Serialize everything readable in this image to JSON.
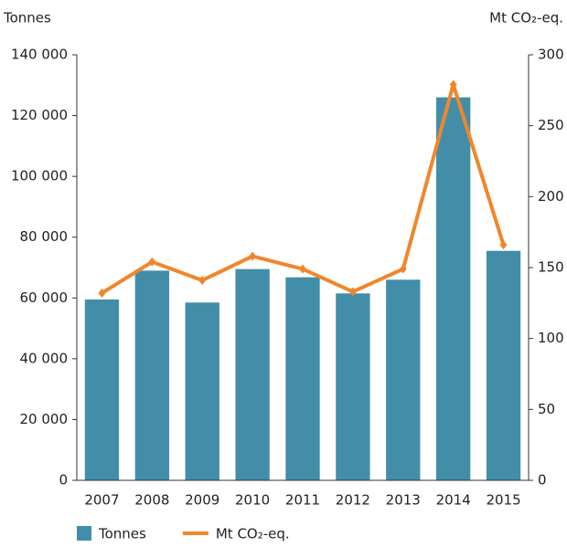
{
  "chart_data": {
    "type": "bar",
    "y_label": "Tonnes",
    "y2_label": "Mt CO₂-eq.",
    "categories": [
      "2007",
      "2008",
      "2009",
      "2010",
      "2011",
      "2012",
      "2013",
      "2014",
      "2015"
    ],
    "series": [
      {
        "name": "Tonnes",
        "type": "bar",
        "color": "#428ea8",
        "values": [
          59500,
          69000,
          58500,
          69500,
          66800,
          61500,
          66000,
          126000,
          75500
        ]
      },
      {
        "name": "Mt CO₂-eq.",
        "type": "line",
        "axis": "y2",
        "color": "#f0862a",
        "values": [
          132,
          154,
          141,
          158,
          149,
          133,
          149,
          279,
          166
        ]
      }
    ],
    "ylim": [
      0,
      140000
    ],
    "yticks": [
      0,
      {
        "value": 20000,
        "label": "20 000"
      },
      {
        "value": 40000,
        "label": "40 000"
      },
      {
        "value": 60000,
        "label": "60 000"
      },
      {
        "value": 80000,
        "label": "80 000"
      },
      {
        "value": 100000,
        "label": "100 000"
      },
      {
        "value": 120000,
        "label": "120 000"
      },
      {
        "value": 140000,
        "label": "140 000"
      }
    ],
    "y2lim": [
      0,
      300
    ],
    "y2ticks": [
      0,
      50,
      100,
      150,
      200,
      250,
      300
    ],
    "grid": false,
    "legend": "bottom"
  }
}
